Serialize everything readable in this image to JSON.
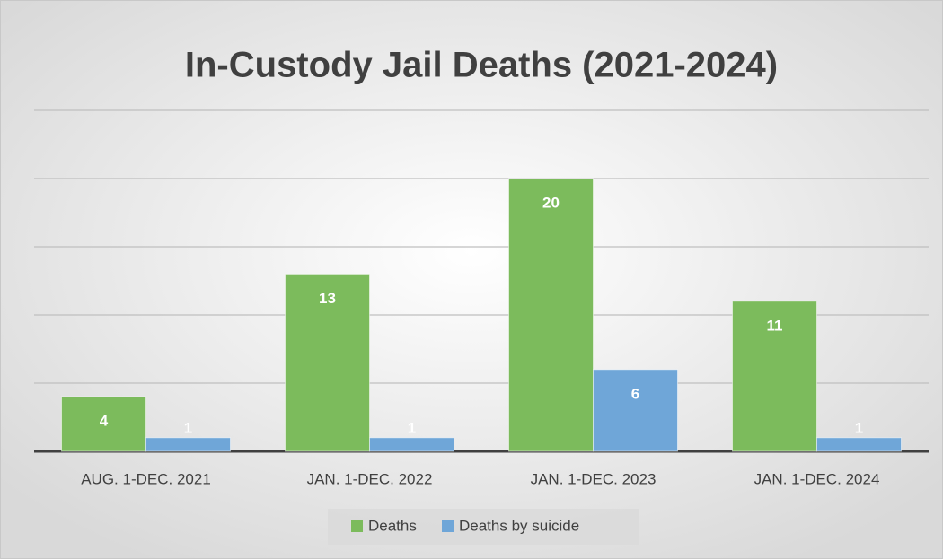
{
  "chart_data": {
    "type": "bar",
    "title": "In-Custody Jail Deaths (2021-2024)",
    "categories": [
      "AUG. 1-DEC. 2021",
      "JAN. 1-DEC. 2022",
      "JAN. 1-DEC. 2023",
      "JAN. 1-DEC. 2024"
    ],
    "series": [
      {
        "name": "Deaths",
        "color": "#7cbb5c",
        "values": [
          4,
          13,
          20,
          11
        ]
      },
      {
        "name": "Deaths by suicide",
        "color": "#6fa6d8",
        "values": [
          1,
          1,
          6,
          1
        ]
      }
    ],
    "ylim": [
      0,
      25
    ],
    "yticks": [
      0,
      5,
      10,
      15,
      20,
      25
    ],
    "grid": true,
    "legend": "bottom"
  }
}
